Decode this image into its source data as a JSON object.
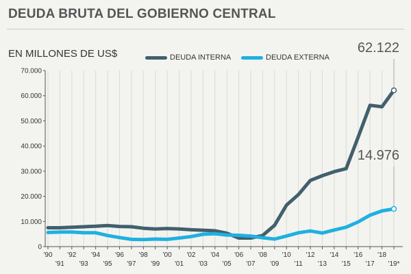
{
  "page": {
    "title": "DEUDA BRUTA DEL GOBIERNO CENTRAL",
    "subtitle": "EN MILLONES DE US$"
  },
  "chart_data": {
    "type": "line",
    "title": "DEUDA BRUTA DEL GOBIERNO CENTRAL",
    "ylabel": "EN MILLONES DE US$",
    "ylim": [
      0,
      70000
    ],
    "yticks": [
      0,
      10000,
      20000,
      30000,
      40000,
      50000,
      60000,
      70000
    ],
    "ytick_labels": [
      "0",
      "10.000",
      "20.000",
      "30.000",
      "40.000",
      "50.000",
      "60.000",
      "70.000"
    ],
    "categories": [
      "'90",
      "'91",
      "'92",
      "'93",
      "'94",
      "'95",
      "'96",
      "'97",
      "'98",
      "'99",
      "'00",
      "'01",
      "'02",
      "'03",
      "'04",
      "'05",
      "'06",
      "'07",
      "'08",
      "'09",
      "'10",
      "'11",
      "'12",
      "'13",
      "'14",
      "'15",
      "'16",
      "'17",
      "'18",
      "'19*"
    ],
    "grid": "vertical",
    "legend_position": "top",
    "series": [
      {
        "name": "DEUDA INTERNA",
        "color": "#41606c",
        "values": [
          7500,
          7500,
          7700,
          7900,
          8100,
          8400,
          8000,
          7900,
          7300,
          7000,
          7200,
          7000,
          6700,
          6500,
          6300,
          5300,
          3400,
          3400,
          4400,
          8500,
          16500,
          20700,
          26300,
          28200,
          29800,
          31000,
          43500,
          56200,
          55600,
          62122
        ]
      },
      {
        "name": "DEUDA EXTERNA",
        "color": "#1fb0e0",
        "values": [
          5600,
          5800,
          5800,
          5500,
          5500,
          4400,
          3600,
          2900,
          2800,
          3000,
          2900,
          3400,
          4000,
          4900,
          5100,
          4600,
          4500,
          4200,
          3500,
          3000,
          4200,
          5500,
          6200,
          5400,
          6600,
          7700,
          9800,
          12500,
          14200,
          14976
        ]
      }
    ],
    "annotations": [
      {
        "series": "DEUDA INTERNA",
        "category": "'19*",
        "label": "62.122"
      },
      {
        "series": "DEUDA EXTERNA",
        "category": "'19*",
        "label": "14.976"
      }
    ]
  }
}
